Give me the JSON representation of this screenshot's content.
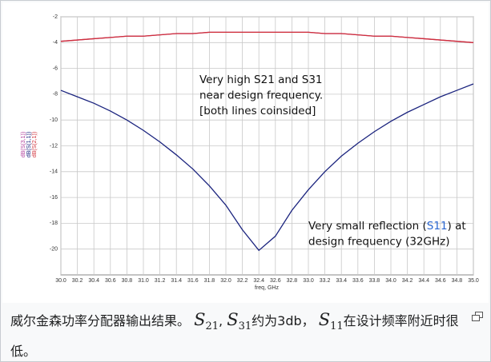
{
  "chart_data": {
    "type": "line",
    "x_label": "freq, GHz",
    "x": [
      30.0,
      30.2,
      30.4,
      30.6,
      30.8,
      31.0,
      31.2,
      31.4,
      31.6,
      31.8,
      32.0,
      32.2,
      32.4,
      32.6,
      32.8,
      33.0,
      33.2,
      33.4,
      33.6,
      33.8,
      34.0,
      34.2,
      34.4,
      34.6,
      34.8,
      35.0
    ],
    "series": [
      {
        "name": "dB(S(3,1))",
        "color": "#b03c9a",
        "values": [
          -3.9,
          -3.8,
          -3.7,
          -3.6,
          -3.5,
          -3.5,
          -3.4,
          -3.3,
          -3.3,
          -3.2,
          -3.2,
          -3.2,
          -3.2,
          -3.2,
          -3.2,
          -3.2,
          -3.3,
          -3.3,
          -3.4,
          -3.5,
          -3.5,
          -3.6,
          -3.7,
          -3.8,
          -3.9,
          -4.0
        ]
      },
      {
        "name": "dB(S(1,1))",
        "color": "#1a237e",
        "values": [
          -7.7,
          -8.2,
          -8.7,
          -9.3,
          -10.0,
          -10.8,
          -11.7,
          -12.7,
          -13.8,
          -15.1,
          -16.6,
          -18.5,
          -20.1,
          -19.0,
          -17.0,
          -15.4,
          -14.0,
          -12.8,
          -11.8,
          -10.9,
          -10.1,
          -9.4,
          -8.8,
          -8.2,
          -7.7,
          -7.2
        ]
      },
      {
        "name": "dB(S(2,1))",
        "color": "#d0303a",
        "values": [
          -3.9,
          -3.8,
          -3.7,
          -3.6,
          -3.5,
          -3.5,
          -3.4,
          -3.3,
          -3.3,
          -3.2,
          -3.2,
          -3.2,
          -3.2,
          -3.2,
          -3.2,
          -3.2,
          -3.3,
          -3.3,
          -3.4,
          -3.5,
          -3.5,
          -3.6,
          -3.7,
          -3.8,
          -3.9,
          -4.0
        ]
      }
    ],
    "xlim": [
      30,
      35
    ],
    "xticks": [
      {
        "value": 30,
        "label": "30.0"
      },
      {
        "value": 30.2,
        "label": "30.2"
      },
      {
        "value": 30.4,
        "label": "30.4"
      },
      {
        "value": 30.6,
        "label": "30.6"
      },
      {
        "value": 30.8,
        "label": "30.8"
      },
      {
        "value": 31,
        "label": "31.0"
      },
      {
        "value": 31.2,
        "label": "31.2"
      },
      {
        "value": 31.4,
        "label": "31.4"
      },
      {
        "value": 31.6,
        "label": "31.6"
      },
      {
        "value": 31.8,
        "label": "31.8"
      },
      {
        "value": 32,
        "label": "32.0"
      },
      {
        "value": 32.2,
        "label": "32.2"
      },
      {
        "value": 32.4,
        "label": "32.4"
      },
      {
        "value": 32.6,
        "label": "32.6"
      },
      {
        "value": 32.8,
        "label": "32.8"
      },
      {
        "value": 33,
        "label": "33.0"
      },
      {
        "value": 33.2,
        "label": "33.2"
      },
      {
        "value": 33.4,
        "label": "33.4"
      },
      {
        "value": 33.6,
        "label": "33.6"
      },
      {
        "value": 33.8,
        "label": "33.8"
      },
      {
        "value": 34,
        "label": "34.0"
      },
      {
        "value": 34.2,
        "label": "34.2"
      },
      {
        "value": 34.4,
        "label": "34.4"
      },
      {
        "value": 34.6,
        "label": "34.6"
      },
      {
        "value": 34.8,
        "label": "34.8"
      },
      {
        "value": 35,
        "label": "35.0"
      }
    ],
    "ylim": [
      -22,
      -2
    ],
    "yticks": [
      -2,
      -4,
      -6,
      -8,
      -10,
      -12,
      -14,
      -16,
      -18,
      -20
    ],
    "grid": true,
    "annotations": [
      {
        "lines": [
          [
            {
              "text": "Very high S21 and S31"
            }
          ],
          [
            {
              "text": "near design frequency."
            }
          ],
          [
            {
              "text": "[both lines coinsided]"
            }
          ]
        ]
      },
      {
        "lines": [
          [
            {
              "text": "Very small reflection ("
            },
            {
              "text": "S11",
              "color": "#2a66d0"
            },
            {
              "text": ") at"
            }
          ],
          [
            {
              "text": "design frequency (32GHz)"
            }
          ]
        ]
      }
    ]
  },
  "caption": [
    {
      "text": "威尔金森功率分配器输出结果。 "
    },
    {
      "base": "S",
      "sub": "21"
    },
    {
      "text": ", "
    },
    {
      "base": "S",
      "sub": "31"
    },
    {
      "text": "约为3db， "
    },
    {
      "base": "S",
      "sub": "11"
    },
    {
      "text": "在设计频率附近时很低。"
    }
  ]
}
